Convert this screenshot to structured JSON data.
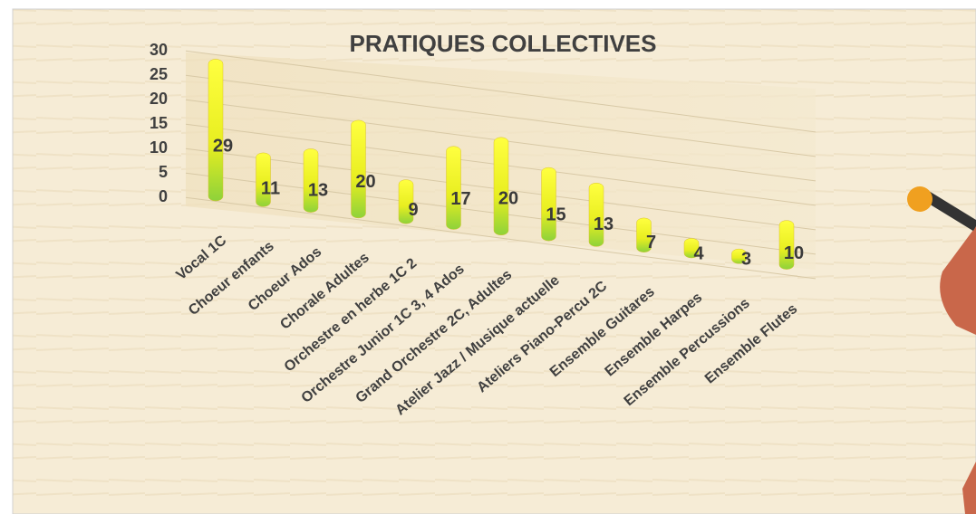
{
  "chart_data": {
    "type": "bar",
    "title": "PRATIQUES COLLECTIVES",
    "categories": [
      "Vocal 1C",
      "Choeur enfants",
      "Choeur Ados",
      "Chorale Adultes",
      "Orchestre en herbe 1C 2",
      "Orchestre Junior 1C 3, 4 Ados",
      "Grand Orchestre 2C, Adultes",
      "Atelier Jazz / Musique actuelle",
      "Ateliers Piano-Percu 2C",
      "Ensemble Guitares",
      "Ensemble Harpes",
      "Ensemble Percussions",
      "Ensemble Flutes"
    ],
    "values": [
      29,
      11,
      13,
      20,
      9,
      17,
      20,
      15,
      13,
      7,
      4,
      3,
      10
    ],
    "color": "#f2f200",
    "ylim": [
      0,
      30
    ],
    "yticks": [
      0,
      5,
      10,
      15,
      20,
      25,
      30
    ],
    "grid": true
  }
}
